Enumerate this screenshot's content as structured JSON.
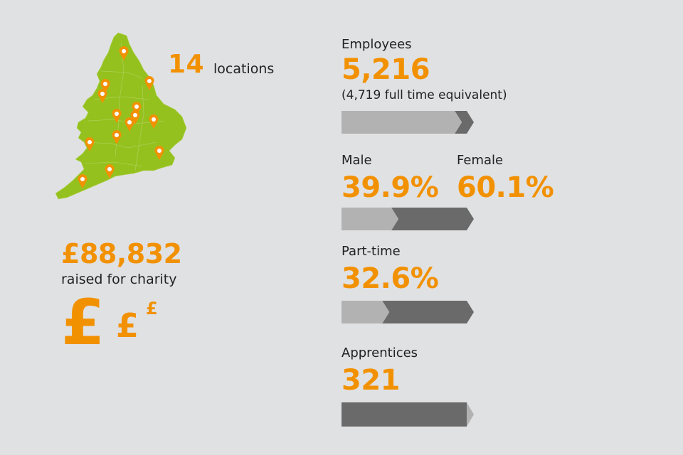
{
  "colors": {
    "background": "#e0e1e3",
    "accent": "#f29100",
    "map_green": "#95c11f",
    "bar_light": "#b2b2b2",
    "bar_dark": "#6a6a6a"
  },
  "locations": {
    "count": "14",
    "label": "locations",
    "pin_icon": "map-pin-icon"
  },
  "charity": {
    "amount": "£88,832",
    "label": "raised for charity",
    "symbol": "£"
  },
  "employees": {
    "label": "Employees",
    "value": "5,216",
    "note": "(4,719 full time equivalent)",
    "full_time_equivalent_fraction": 0.905
  },
  "gender": {
    "male_label": "Male",
    "male_value": "39.9%",
    "female_label": "Female",
    "female_value": "60.1%",
    "male_fraction": 0.399
  },
  "part_time": {
    "label": "Part-time",
    "value": "32.6%",
    "fraction": 0.326
  },
  "apprentices": {
    "label": "Apprentices",
    "value": "321",
    "fraction": 1.0
  }
}
